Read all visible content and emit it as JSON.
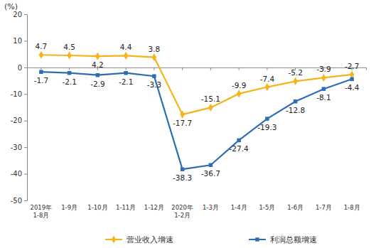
{
  "chart_data": {
    "type": "line",
    "y_label": "(%)",
    "categories": [
      "2019年\n1-8月",
      "1-9月",
      "1-10月",
      "1-11月",
      "1-12月",
      "2020年\n1-2月",
      "1-3月",
      "1-4月",
      "1-5月",
      "1-6月",
      "1-7月",
      "1-8月"
    ],
    "series": [
      {
        "name": "营业收入增速",
        "color": "#f5b31c",
        "marker": "diamond",
        "values": [
          4.7,
          4.5,
          4.2,
          4.4,
          3.8,
          -17.7,
          -15.1,
          -9.9,
          -7.4,
          -5.2,
          -3.9,
          -2.7
        ]
      },
      {
        "name": "利润总额增速",
        "color": "#2e6db4",
        "marker": "square",
        "values": [
          -1.7,
          -2.1,
          -2.9,
          -2.1,
          -3.3,
          -38.3,
          -36.7,
          -27.4,
          -19.3,
          -12.8,
          -8.1,
          -4.4
        ]
      }
    ],
    "ylim": [
      -50,
      20
    ],
    "yticks": [
      20,
      10,
      0,
      -10,
      -20,
      -30,
      -40,
      -50
    ],
    "grid": false,
    "data_labels": true,
    "legend": "bottom"
  }
}
